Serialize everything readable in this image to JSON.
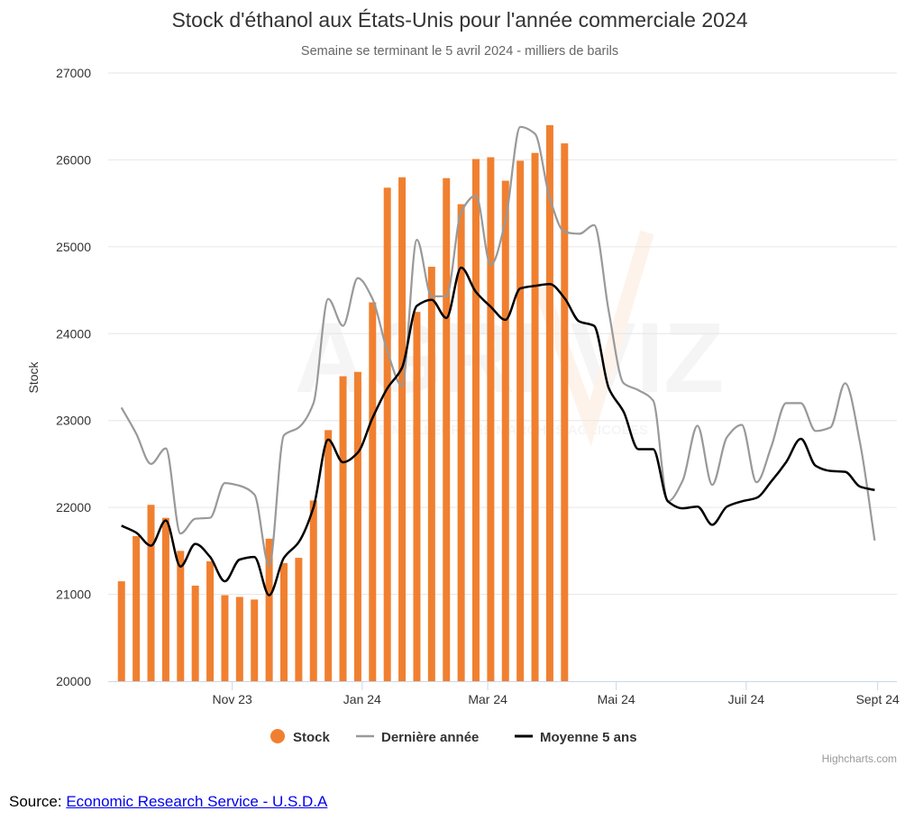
{
  "chart_data": {
    "type": "bar",
    "title": "Stock d'éthanol aux États-Unis pour l'année commerciale 2024",
    "subtitle": "Semaine se terminant le 5 avril 2024 - milliers de barils",
    "ylabel": "Stock",
    "ylim": [
      20000,
      27000
    ],
    "y_ticks": [
      20000,
      21000,
      22000,
      23000,
      24000,
      25000,
      26000,
      27000
    ],
    "x_ticks": [
      {
        "label": "Nov 23",
        "week": 7.5
      },
      {
        "label": "Jan 24",
        "week": 16.3
      },
      {
        "label": "Mar 24",
        "week": 24.8
      },
      {
        "label": "Mai 24",
        "week": 33.5
      },
      {
        "label": "Juil 24",
        "week": 42.3
      },
      {
        "label": "Sept 24",
        "week": 51.2
      }
    ],
    "x_range": [
      -0.9,
      52.5
    ],
    "grid": true,
    "legend_position": "bottom",
    "series": [
      {
        "name": "Stock",
        "type": "bar",
        "color": "#f08030",
        "values": [
          21150,
          21670,
          22030,
          21880,
          21500,
          21100,
          21380,
          20990,
          20970,
          20940,
          21640,
          21360,
          21420,
          22080,
          22890,
          23510,
          23560,
          24360,
          25680,
          25800,
          24250,
          24770,
          25790,
          25490,
          26010,
          26030,
          25760,
          25990,
          26080,
          26400,
          26190
        ]
      },
      {
        "name": "Dernière année",
        "type": "line",
        "color": "#999999",
        "values": [
          23150,
          22850,
          22500,
          22680,
          21700,
          21870,
          21880,
          22280,
          22250,
          22150,
          21330,
          22830,
          22920,
          23200,
          24400,
          24090,
          24640,
          24400,
          23800,
          23400,
          25080,
          24430,
          24430,
          25400,
          25590,
          24790,
          25300,
          26380,
          26300,
          25560,
          25170,
          25150,
          25250,
          24250,
          23430,
          23350,
          23230,
          22070,
          22310,
          22940,
          22260,
          22810,
          22950,
          22290,
          22700,
          23200,
          23200,
          22880,
          22920,
          23430,
          22750,
          21620
        ]
      },
      {
        "name": "Moyenne 5 ans",
        "type": "line",
        "color": "#000000",
        "values": [
          21790,
          21710,
          21560,
          21850,
          21320,
          21580,
          21430,
          21150,
          21400,
          21430,
          20990,
          21420,
          21600,
          22000,
          22780,
          22520,
          22630,
          23030,
          23370,
          23610,
          24320,
          24390,
          24180,
          24760,
          24480,
          24310,
          24160,
          24520,
          24550,
          24570,
          24410,
          24140,
          24090,
          23370,
          23100,
          22670,
          22670,
          22070,
          21990,
          22010,
          21800,
          22010,
          22070,
          22110,
          22300,
          22520,
          22790,
          22480,
          22420,
          22410,
          22240,
          22200
        ]
      }
    ],
    "credits": "Highcharts.com"
  },
  "watermark": {
    "text": "AGRI VIZ",
    "tagline": "LE MEILLEUR DES MARCHÉS AGRICOLES"
  },
  "source": {
    "prefix": "Source:",
    "link_text": "Economic Research Service - U.S.D.A"
  }
}
